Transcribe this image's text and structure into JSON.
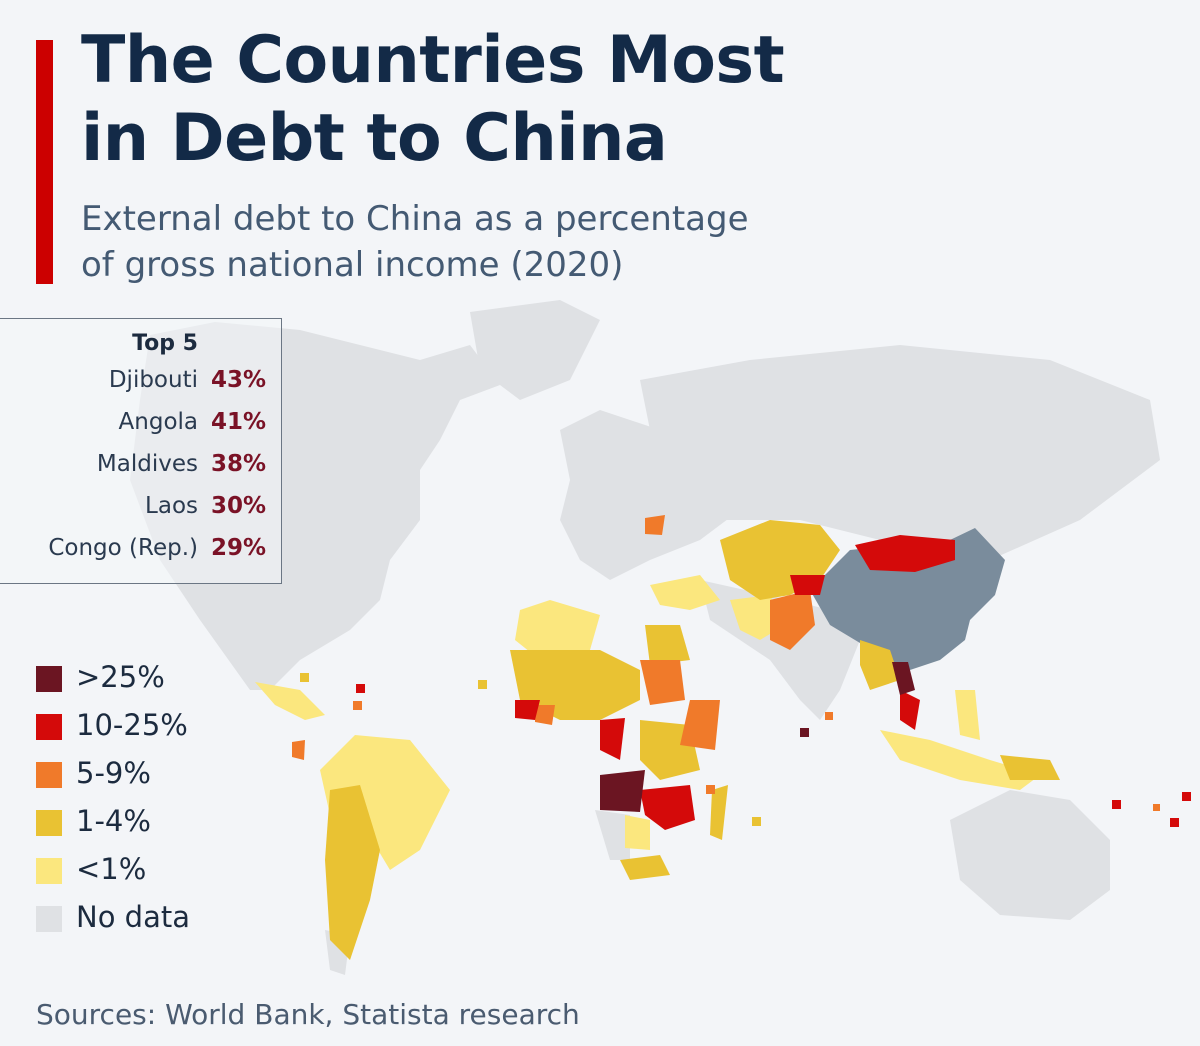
{
  "header": {
    "title_line1": "The Countries Most",
    "title_line2": "in Debt to China",
    "subtitle_line1": "External debt to China as a percentage",
    "subtitle_line2": "of gross national income (2020)"
  },
  "colors": {
    "accent": "#cc0000",
    "over_25": "#6b1522",
    "range_10_25": "#d40a0a",
    "range_5_9": "#f07a2a",
    "range_1_4": "#e9c233",
    "under_1": "#fbe77e",
    "no_data": "#dfe1e4",
    "china": "#7a8c9c"
  },
  "top5": {
    "heading": "Top 5",
    "rows": [
      {
        "country": "Djibouti",
        "value": "43%"
      },
      {
        "country": "Angola",
        "value": "41%"
      },
      {
        "country": "Maldives",
        "value": "38%"
      },
      {
        "country": "Laos",
        "value": "30%"
      },
      {
        "country": "Congo (Rep.)",
        "value": "29%"
      }
    ]
  },
  "legend": [
    {
      "label": ">25%",
      "color": "#6b1522"
    },
    {
      "label": "10-25%",
      "color": "#d40a0a"
    },
    {
      "label": "5-9%",
      "color": "#f07a2a"
    },
    {
      "label": "1-4%",
      "color": "#e9c233"
    },
    {
      "label": "<1%",
      "color": "#fbe77e"
    },
    {
      "label": "No data",
      "color": "#dfe1e4"
    }
  ],
  "source": "Sources: World Bank, Statista research"
}
